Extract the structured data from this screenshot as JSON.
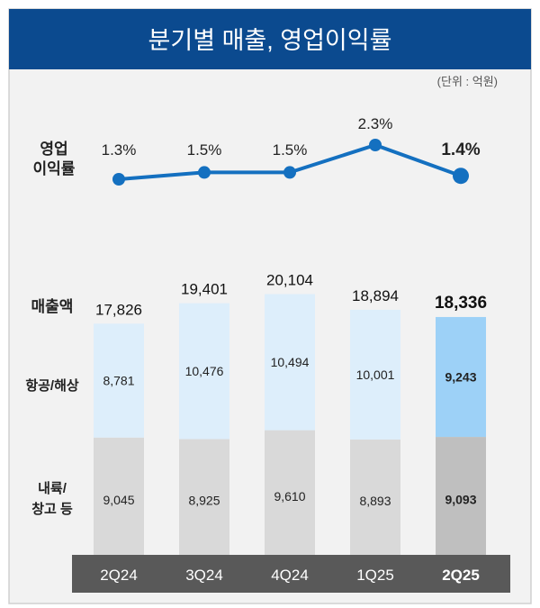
{
  "title": "분기별 매출, 영업이익률",
  "unit_note": "(단위 : 억원)",
  "colors": {
    "header": "#0b4a8f",
    "panel": "#f2f2f2",
    "line": "#1470c0",
    "upper_bar": "#ddeefb",
    "upper_bar_highlight": "#9dd1f7",
    "lower_bar": "#d9d9d9",
    "lower_bar_highlight": "#bfbfbf",
    "category_band": "#595959"
  },
  "chart_data": [
    {
      "type": "line",
      "row_label": [
        "영업",
        "이익률"
      ],
      "categories": [
        "2Q24",
        "3Q24",
        "4Q24",
        "1Q25",
        "2Q25"
      ],
      "values": [
        1.3,
        1.5,
        1.5,
        2.3,
        1.4
      ],
      "data_labels": [
        "1.3%",
        "1.5%",
        "1.5%",
        "2.3%",
        "1.4%"
      ],
      "highlight_index": 4
    },
    {
      "type": "bar",
      "stacked": true,
      "total_label": "매출액",
      "categories": [
        "2Q24",
        "3Q24",
        "4Q24",
        "1Q25",
        "2Q25"
      ],
      "totals": [
        17826,
        19401,
        20104,
        18894,
        18336
      ],
      "total_labels": [
        "17,826",
        "19,401",
        "20,104",
        "18,894",
        "18,336"
      ],
      "series": [
        {
          "name": "내륙/창고 등",
          "name_lines": [
            "내륙/",
            "창고 등"
          ],
          "values": [
            9045,
            8925,
            9610,
            8893,
            9093
          ],
          "labels": [
            "9,045",
            "8,925",
            "9,610",
            "8,893",
            "9,093"
          ]
        },
        {
          "name": "항공/해상",
          "name_lines": [
            "항공/해상"
          ],
          "values": [
            8781,
            10476,
            10494,
            10001,
            9243
          ],
          "labels": [
            "8,781",
            "10,476",
            "10,494",
            "10,001",
            "9,243"
          ]
        }
      ],
      "highlight_index": 4
    }
  ]
}
